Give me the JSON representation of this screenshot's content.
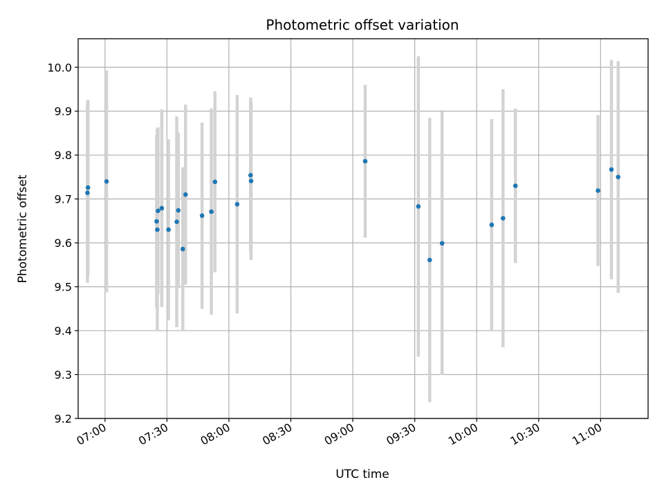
{
  "chart_data": {
    "type": "scatter",
    "title": "Photometric offset variation",
    "xlabel": "UTC time",
    "ylabel": "Photometric offset",
    "grid": true,
    "x_tick_labels": [
      "07:00",
      "07:30",
      "08:00",
      "08:30",
      "09:00",
      "09:30",
      "10:00",
      "10:30",
      "11:00"
    ],
    "x_ticks": [
      "07:00",
      "07:30",
      "08:00",
      "08:30",
      "09:00",
      "09:30",
      "10:00",
      "10:30",
      "11:00"
    ],
    "xlim": [
      "06:47",
      "11:23"
    ],
    "ylim": [
      9.2,
      10.065
    ],
    "y_ticks": [
      9.2,
      9.3,
      9.4,
      9.5,
      9.6,
      9.7,
      9.8,
      9.9,
      10.0
    ],
    "y_tick_labels": [
      "9.2",
      "9.3",
      "9.4",
      "9.5",
      "9.6",
      "9.7",
      "9.8",
      "9.9",
      "10.0"
    ],
    "colors": {
      "point": "#1f77b4",
      "errorbar": "#d3d3d3",
      "grid": "#b0b0b0"
    },
    "points": [
      {
        "x": "06:51:30",
        "y": 9.714,
        "err": 0.205
      },
      {
        "x": "06:51:45",
        "y": 9.726,
        "err": 0.2
      },
      {
        "x": "07:00:45",
        "y": 9.74,
        "err": 0.253
      },
      {
        "x": "07:25:00",
        "y": 9.649,
        "err": 0.197
      },
      {
        "x": "07:25:20",
        "y": 9.63,
        "err": 0.23
      },
      {
        "x": "07:25:40",
        "y": 9.673,
        "err": 0.19
      },
      {
        "x": "07:27:30",
        "y": 9.679,
        "err": 0.225
      },
      {
        "x": "07:30:45",
        "y": 9.63,
        "err": 0.206
      },
      {
        "x": "07:34:45",
        "y": 9.648,
        "err": 0.24
      },
      {
        "x": "07:35:30",
        "y": 9.674,
        "err": 0.177
      },
      {
        "x": "07:37:40",
        "y": 9.586,
        "err": 0.186
      },
      {
        "x": "07:39:00",
        "y": 9.71,
        "err": 0.205
      },
      {
        "x": "07:47:00",
        "y": 9.662,
        "err": 0.212
      },
      {
        "x": "07:51:30",
        "y": 9.671,
        "err": 0.235
      },
      {
        "x": "07:53:15",
        "y": 9.739,
        "err": 0.206
      },
      {
        "x": "08:04:00",
        "y": 9.688,
        "err": 0.249
      },
      {
        "x": "08:10:30",
        "y": 9.754,
        "err": 0.177
      },
      {
        "x": "08:10:45",
        "y": 9.741,
        "err": 0.18
      },
      {
        "x": "09:06:00",
        "y": 9.786,
        "err": 0.174
      },
      {
        "x": "09:31:45",
        "y": 9.683,
        "err": 0.342
      },
      {
        "x": "09:37:15",
        "y": 9.561,
        "err": 0.324
      },
      {
        "x": "09:43:15",
        "y": 9.599,
        "err": 0.3
      },
      {
        "x": "10:07:15",
        "y": 9.641,
        "err": 0.241
      },
      {
        "x": "10:12:45",
        "y": 9.656,
        "err": 0.294
      },
      {
        "x": "10:18:45",
        "y": 9.73,
        "err": 0.176
      },
      {
        "x": "10:58:45",
        "y": 9.719,
        "err": 0.172
      },
      {
        "x": "11:05:15",
        "y": 9.767,
        "err": 0.25
      },
      {
        "x": "11:08:30",
        "y": 9.75,
        "err": 0.264
      }
    ]
  }
}
